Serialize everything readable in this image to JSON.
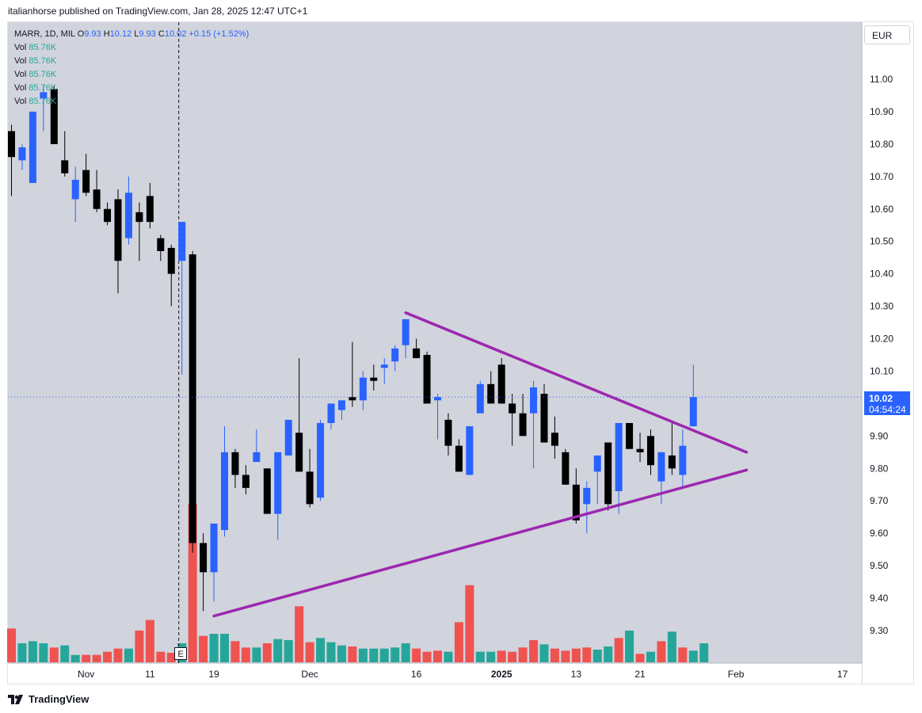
{
  "header": {
    "published": "italianhorse published on TradingView.com, Jan 28, 2025 12:47 UTC+1"
  },
  "legend": {
    "symbol": "MARR, 1D, MIL",
    "o_label": "O",
    "o_value": "9.93",
    "h_label": "H",
    "h_value": "10.12",
    "l_label": "L",
    "l_value": "9.93",
    "c_label": "C",
    "c_value": "10.02",
    "change": "+0.15 (+1.52%)",
    "vol_rows": [
      {
        "label": "Vol",
        "value": "85.76K"
      },
      {
        "label": "Vol",
        "value": "85.76K"
      },
      {
        "label": "Vol",
        "value": "85.76K"
      },
      {
        "label": "Vol",
        "value": "85.76K"
      },
      {
        "label": "Vol",
        "value": "85.76K"
      }
    ]
  },
  "currency": "EUR",
  "last_price": {
    "value": "10.02",
    "countdown": "04:54:24"
  },
  "earnings_marker": "E",
  "brand": "TradingView",
  "colors": {
    "up": "#2962ff",
    "down": "#000000",
    "vol_up": "#26a69a",
    "vol_down": "#ef5350",
    "trendline": "#9c27b0",
    "last_price": "#2962ff",
    "background": "#d1d4dc"
  },
  "chart_data": {
    "type": "candlestick",
    "title": "MARR, 1D, MIL",
    "ylim": [
      9.2,
      11.2
    ],
    "y_ticks": [
      "11.00",
      "10.90",
      "10.80",
      "10.70",
      "10.60",
      "10.50",
      "10.40",
      "10.30",
      "10.20",
      "10.10",
      "9.90",
      "9.80",
      "9.70",
      "9.60",
      "9.50",
      "9.40",
      "9.30"
    ],
    "x_ticks": [
      {
        "i": 7,
        "label": "Nov"
      },
      {
        "i": 13,
        "label": "11"
      },
      {
        "i": 19,
        "label": "19"
      },
      {
        "i": 28,
        "label": "Dec"
      },
      {
        "i": 38,
        "label": "16"
      },
      {
        "i": 46,
        "label": "2025"
      },
      {
        "i": 53,
        "label": "13"
      },
      {
        "i": 59,
        "label": "21"
      },
      {
        "i": 68,
        "label": "Feb"
      },
      {
        "i": 78,
        "label": "17"
      }
    ],
    "candles": [
      {
        "o": 10.84,
        "h": 10.86,
        "l": 10.64,
        "c": 10.76
      },
      {
        "o": 10.75,
        "h": 10.8,
        "l": 10.72,
        "c": 10.79
      },
      {
        "o": 10.68,
        "h": 10.9,
        "l": 10.68,
        "c": 10.9
      },
      {
        "o": 10.94,
        "h": 10.98,
        "l": 10.84,
        "c": 10.96
      },
      {
        "o": 10.97,
        "h": 10.98,
        "l": 10.8,
        "c": 10.8
      },
      {
        "o": 10.75,
        "h": 10.84,
        "l": 10.7,
        "c": 10.71
      },
      {
        "o": 10.63,
        "h": 10.73,
        "l": 10.56,
        "c": 10.69
      },
      {
        "o": 10.72,
        "h": 10.77,
        "l": 10.64,
        "c": 10.65
      },
      {
        "o": 10.66,
        "h": 10.72,
        "l": 10.59,
        "c": 10.6
      },
      {
        "o": 10.6,
        "h": 10.62,
        "l": 10.55,
        "c": 10.56
      },
      {
        "o": 10.63,
        "h": 10.66,
        "l": 10.34,
        "c": 10.44
      },
      {
        "o": 10.51,
        "h": 10.7,
        "l": 10.49,
        "c": 10.65
      },
      {
        "o": 10.59,
        "h": 10.62,
        "l": 10.44,
        "c": 10.56
      },
      {
        "o": 10.64,
        "h": 10.68,
        "l": 10.54,
        "c": 10.56
      },
      {
        "o": 10.51,
        "h": 10.52,
        "l": 10.44,
        "c": 10.47
      },
      {
        "o": 10.48,
        "h": 10.49,
        "l": 10.3,
        "c": 10.4
      },
      {
        "o": 10.44,
        "h": 10.56,
        "l": 10.09,
        "c": 10.56
      },
      {
        "o": 10.46,
        "h": 10.47,
        "l": 9.54,
        "c": 9.57
      },
      {
        "o": 9.57,
        "h": 9.6,
        "l": 9.36,
        "c": 9.48
      },
      {
        "o": 9.48,
        "h": 9.63,
        "l": 9.39,
        "c": 9.63
      },
      {
        "o": 9.61,
        "h": 9.93,
        "l": 9.59,
        "c": 9.85
      },
      {
        "o": 9.85,
        "h": 9.86,
        "l": 9.74,
        "c": 9.78
      },
      {
        "o": 9.78,
        "h": 9.81,
        "l": 9.72,
        "c": 9.74
      },
      {
        "o": 9.82,
        "h": 9.92,
        "l": 9.82,
        "c": 9.85
      },
      {
        "o": 9.8,
        "h": 9.8,
        "l": 9.66,
        "c": 9.66
      },
      {
        "o": 9.66,
        "h": 9.85,
        "l": 9.58,
        "c": 9.85
      },
      {
        "o": 9.84,
        "h": 9.95,
        "l": 9.84,
        "c": 9.95
      },
      {
        "o": 9.91,
        "h": 10.14,
        "l": 9.79,
        "c": 9.79
      },
      {
        "o": 9.79,
        "h": 9.86,
        "l": 9.68,
        "c": 9.69
      },
      {
        "o": 9.71,
        "h": 9.95,
        "l": 9.7,
        "c": 9.94
      },
      {
        "o": 9.94,
        "h": 10.0,
        "l": 9.92,
        "c": 10.0
      },
      {
        "o": 9.98,
        "h": 10.01,
        "l": 9.95,
        "c": 10.01
      },
      {
        "o": 10.02,
        "h": 10.19,
        "l": 9.99,
        "c": 10.01
      },
      {
        "o": 10.01,
        "h": 10.1,
        "l": 9.98,
        "c": 10.08
      },
      {
        "o": 10.08,
        "h": 10.12,
        "l": 10.04,
        "c": 10.07
      },
      {
        "o": 10.11,
        "h": 10.14,
        "l": 10.06,
        "c": 10.12
      },
      {
        "o": 10.13,
        "h": 10.18,
        "l": 10.1,
        "c": 10.17
      },
      {
        "o": 10.18,
        "h": 10.26,
        "l": 10.14,
        "c": 10.26
      },
      {
        "o": 10.17,
        "h": 10.2,
        "l": 10.14,
        "c": 10.14
      },
      {
        "o": 10.15,
        "h": 10.16,
        "l": 10.0,
        "c": 10.0
      },
      {
        "o": 10.01,
        "h": 10.03,
        "l": 9.89,
        "c": 10.02
      },
      {
        "o": 9.95,
        "h": 9.97,
        "l": 9.84,
        "c": 9.87
      },
      {
        "o": 9.87,
        "h": 9.89,
        "l": 9.79,
        "c": 9.79
      },
      {
        "o": 9.78,
        "h": 9.93,
        "l": 9.78,
        "c": 9.93
      },
      {
        "o": 9.97,
        "h": 10.07,
        "l": 9.97,
        "c": 10.06
      },
      {
        "o": 10.06,
        "h": 10.1,
        "l": 10.0,
        "c": 10.0
      },
      {
        "o": 10.12,
        "h": 10.14,
        "l": 10.0,
        "c": 10.0
      },
      {
        "o": 10.0,
        "h": 10.03,
        "l": 9.87,
        "c": 9.97
      },
      {
        "o": 9.97,
        "h": 10.03,
        "l": 9.9,
        "c": 9.9
      },
      {
        "o": 9.97,
        "h": 10.07,
        "l": 9.8,
        "c": 10.05
      },
      {
        "o": 10.03,
        "h": 10.06,
        "l": 9.88,
        "c": 9.88
      },
      {
        "o": 9.91,
        "h": 9.96,
        "l": 9.83,
        "c": 9.87
      },
      {
        "o": 9.85,
        "h": 9.86,
        "l": 9.75,
        "c": 9.75
      },
      {
        "o": 9.75,
        "h": 9.8,
        "l": 9.63,
        "c": 9.64
      },
      {
        "o": 9.69,
        "h": 9.76,
        "l": 9.6,
        "c": 9.74
      },
      {
        "o": 9.79,
        "h": 9.84,
        "l": 9.69,
        "c": 9.84
      },
      {
        "o": 9.88,
        "h": 9.88,
        "l": 9.67,
        "c": 9.69
      },
      {
        "o": 9.73,
        "h": 9.94,
        "l": 9.66,
        "c": 9.94
      },
      {
        "o": 9.94,
        "h": 9.94,
        "l": 9.86,
        "c": 9.86
      },
      {
        "o": 9.86,
        "h": 9.91,
        "l": 9.82,
        "c": 9.85
      },
      {
        "o": 9.9,
        "h": 9.92,
        "l": 9.78,
        "c": 9.81
      },
      {
        "o": 9.76,
        "h": 9.85,
        "l": 9.69,
        "c": 9.85
      },
      {
        "o": 9.84,
        "h": 9.94,
        "l": 9.78,
        "c": 9.8
      },
      {
        "o": 9.78,
        "h": 9.92,
        "l": 9.74,
        "c": 9.87
      },
      {
        "o": 9.93,
        "h": 10.12,
        "l": 9.93,
        "c": 10.02
      }
    ],
    "volumes": [
      {
        "v": 32,
        "up": false
      },
      {
        "v": 18,
        "up": true
      },
      {
        "v": 20,
        "up": true
      },
      {
        "v": 18,
        "up": true
      },
      {
        "v": 14,
        "up": false
      },
      {
        "v": 16,
        "up": true
      },
      {
        "v": 7,
        "up": true
      },
      {
        "v": 7,
        "up": false
      },
      {
        "v": 7,
        "up": false
      },
      {
        "v": 10,
        "up": false
      },
      {
        "v": 13,
        "up": false
      },
      {
        "v": 13,
        "up": true
      },
      {
        "v": 30,
        "up": false
      },
      {
        "v": 40,
        "up": false
      },
      {
        "v": 10,
        "up": false
      },
      {
        "v": 9,
        "up": false
      },
      {
        "v": 18,
        "up": true
      },
      {
        "v": 150,
        "up": false
      },
      {
        "v": 25,
        "up": false
      },
      {
        "v": 27,
        "up": true
      },
      {
        "v": 27,
        "up": true
      },
      {
        "v": 20,
        "up": false
      },
      {
        "v": 14,
        "up": false
      },
      {
        "v": 14,
        "up": true
      },
      {
        "v": 18,
        "up": false
      },
      {
        "v": 22,
        "up": true
      },
      {
        "v": 21,
        "up": true
      },
      {
        "v": 53,
        "up": false
      },
      {
        "v": 19,
        "up": false
      },
      {
        "v": 23,
        "up": true
      },
      {
        "v": 19,
        "up": true
      },
      {
        "v": 16,
        "up": true
      },
      {
        "v": 15,
        "up": false
      },
      {
        "v": 13,
        "up": true
      },
      {
        "v": 13,
        "up": true
      },
      {
        "v": 13,
        "up": true
      },
      {
        "v": 14,
        "up": true
      },
      {
        "v": 18,
        "up": true
      },
      {
        "v": 13,
        "up": false
      },
      {
        "v": 10,
        "up": false
      },
      {
        "v": 11,
        "up": false
      },
      {
        "v": 10,
        "up": true
      },
      {
        "v": 38,
        "up": false
      },
      {
        "v": 73,
        "up": false
      },
      {
        "v": 10,
        "up": true
      },
      {
        "v": 10,
        "up": true
      },
      {
        "v": 11,
        "up": false
      },
      {
        "v": 10,
        "up": false
      },
      {
        "v": 14,
        "up": false
      },
      {
        "v": 21,
        "up": false
      },
      {
        "v": 17,
        "up": true
      },
      {
        "v": 13,
        "up": false
      },
      {
        "v": 11,
        "up": false
      },
      {
        "v": 13,
        "up": false
      },
      {
        "v": 14,
        "up": false
      },
      {
        "v": 12,
        "up": true
      },
      {
        "v": 15,
        "up": true
      },
      {
        "v": 23,
        "up": false
      },
      {
        "v": 30,
        "up": true
      },
      {
        "v": 8,
        "up": false
      },
      {
        "v": 10,
        "up": true
      },
      {
        "v": 20,
        "up": false
      },
      {
        "v": 29,
        "up": true
      },
      {
        "v": 14,
        "up": false
      },
      {
        "v": 11,
        "up": true
      },
      {
        "v": 18,
        "up": true
      }
    ],
    "trendlines": [
      {
        "from": {
          "i": 37,
          "price": 10.28
        },
        "to": {
          "i": 69,
          "price": 9.85
        }
      },
      {
        "from": {
          "i": 19,
          "price": 9.345
        },
        "to": {
          "i": 69,
          "price": 9.795
        }
      }
    ],
    "earnings_bar_index": 16,
    "last_price_value": 10.02
  }
}
